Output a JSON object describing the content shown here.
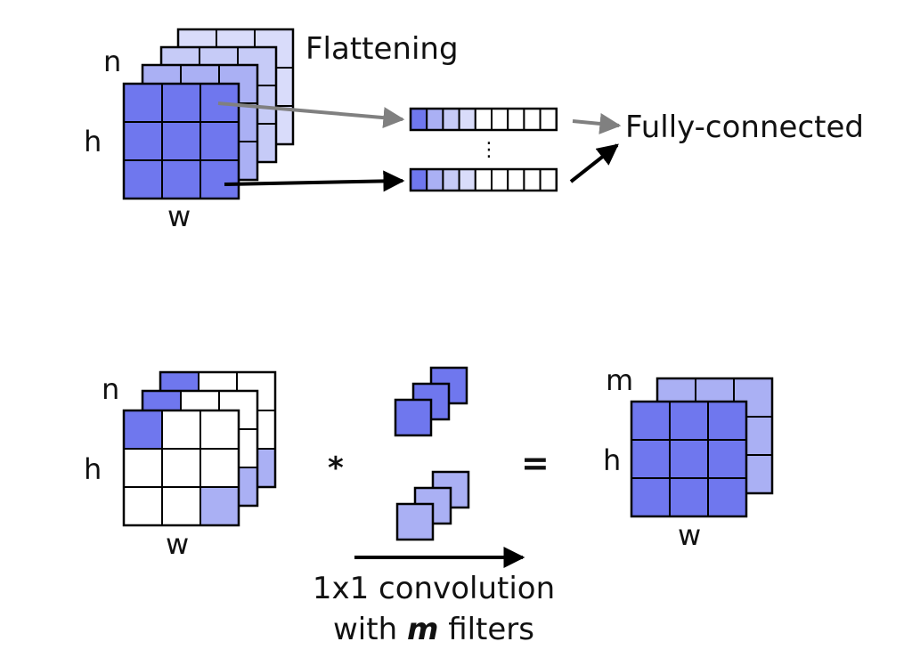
{
  "colors": {
    "dark": "#6f77ee",
    "light": "#aab0f4",
    "pale": "#d9dcfa",
    "stroke": "#000000",
    "arrow_gray": "#808080",
    "arrow_black": "#000000"
  },
  "top": {
    "label_n": "n",
    "label_h": "h",
    "label_w": "w",
    "title": "Flattening",
    "vector_dots": "⋮",
    "output_label": "Fully-connected"
  },
  "bottom": {
    "label_n": "n",
    "label_h": "h",
    "label_w": "w",
    "operator_conv": "*",
    "operator_eq": "=",
    "label_m": "m",
    "label_h_out": "h",
    "label_w_out": "w",
    "caption_line1": "1x1 convolution",
    "caption_with": "with",
    "caption_m": "m",
    "caption_filters": "filters"
  }
}
